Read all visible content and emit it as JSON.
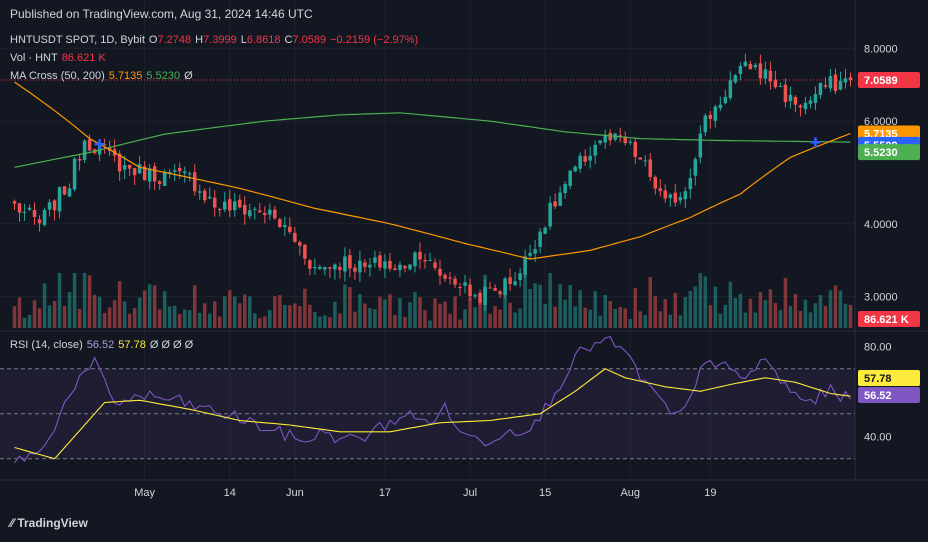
{
  "header": {
    "published": "Published on TradingView.com, Aug 31, 2024 14:46 UTC"
  },
  "legend": {
    "symbol": "HNTUSDT SPOT, 1D, Bybit",
    "o_label": "O",
    "o": "7.2748",
    "h_label": "H",
    "h": "7.3999",
    "l_label": "L",
    "l": "6.8618",
    "c_label": "C",
    "c": "7.0589",
    "chg": "−0.2159 (−2.97%)",
    "vol_label": "Vol · HNT",
    "vol": "86.621 K",
    "ma_label": "MA Cross (50, 200)",
    "ma50": "5.7135",
    "ma200": "5.5230",
    "ma_glyph": "Ø",
    "rsi_label": "RSI (14, close)",
    "rsi": "56.52",
    "rsi_ma": "57.78",
    "rsi_glyphs": "Ø Ø Ø Ø"
  },
  "footer": {
    "logo": "TradingView"
  },
  "colors": {
    "up": "#26a69a",
    "down": "#ef5350",
    "ma50": "#ff9800",
    "ma200": "#4caf50",
    "rsi": "#7e57c2",
    "rsi_ma": "#ffeb3b",
    "cross": "#2962ff"
  },
  "chart_data": [
    {
      "type": "candlestick",
      "title": "",
      "x_ticks": [
        "May",
        "14",
        "Jun",
        "17",
        "Jul",
        "15",
        "Aug",
        "19"
      ],
      "y_ticks": [
        "8.0000",
        "6.0000",
        "4.0000",
        "3.0000"
      ],
      "y_tick_values": [
        8.0,
        6.0,
        4.0,
        3.0
      ],
      "scale": "log",
      "ylim": [
        2.65,
        8.6
      ],
      "close_anchors": [
        [
          0,
          4.3
        ],
        [
          5,
          4.0
        ],
        [
          11,
          4.7
        ],
        [
          14,
          5.6
        ],
        [
          18,
          5.3
        ],
        [
          22,
          5.0
        ],
        [
          28,
          4.85
        ],
        [
          35,
          4.8
        ],
        [
          40,
          4.3
        ],
        [
          50,
          4.2
        ],
        [
          55,
          3.85
        ],
        [
          60,
          3.35
        ],
        [
          66,
          3.45
        ],
        [
          70,
          3.35
        ],
        [
          74,
          3.45
        ],
        [
          76,
          3.3
        ],
        [
          81,
          3.6
        ],
        [
          84,
          3.3
        ],
        [
          88,
          3.2
        ],
        [
          92,
          3.0
        ],
        [
          97,
          3.1
        ],
        [
          101,
          3.3
        ],
        [
          105,
          3.9
        ],
        [
          111,
          4.8
        ],
        [
          117,
          5.6
        ],
        [
          122,
          5.5
        ],
        [
          126,
          5.0
        ],
        [
          130,
          4.3
        ],
        [
          134,
          4.6
        ],
        [
          138,
          6.0
        ],
        [
          141,
          6.5
        ],
        [
          143,
          7.0
        ],
        [
          147,
          7.5
        ],
        [
          151,
          7.1
        ],
        [
          155,
          6.5
        ],
        [
          158,
          6.4
        ],
        [
          162,
          6.9
        ],
        [
          165,
          7.0
        ],
        [
          167,
          7.06
        ]
      ],
      "last_close": 7.0589,
      "ma50_anchors": [
        [
          0,
          7.0
        ],
        [
          15,
          5.6
        ],
        [
          25,
          5.0
        ],
        [
          45,
          4.6
        ],
        [
          60,
          4.25
        ],
        [
          75,
          4.0
        ],
        [
          90,
          3.7
        ],
        [
          103,
          3.48
        ],
        [
          115,
          3.6
        ],
        [
          125,
          3.8
        ],
        [
          135,
          4.1
        ],
        [
          145,
          4.5
        ],
        [
          155,
          5.2
        ],
        [
          167,
          5.7135
        ]
      ],
      "ma200_anchors": [
        [
          0,
          5.0
        ],
        [
          15,
          5.3
        ],
        [
          30,
          5.7
        ],
        [
          50,
          6.0
        ],
        [
          65,
          6.15
        ],
        [
          77,
          6.2
        ],
        [
          95,
          6.0
        ],
        [
          110,
          5.75
        ],
        [
          125,
          5.6
        ],
        [
          140,
          5.56
        ],
        [
          167,
          5.523
        ]
      ],
      "cross_points": [
        [
          17,
          5.48
        ],
        [
          160,
          5.52
        ]
      ],
      "price_labels": [
        {
          "value": "7.0589",
          "price": 7.0589,
          "color": "#f23645"
        },
        {
          "value": "5.7135",
          "price": 5.7135,
          "color": "#ff9800"
        },
        {
          "value": "5.5509",
          "price": 5.5509,
          "color": "#2962ff"
        },
        {
          "value": "5.5230",
          "price": 5.523,
          "color": "#4caf50"
        }
      ]
    },
    {
      "type": "bar",
      "title": "",
      "series_name": "Vol · HNT",
      "last_value": "86.621 K",
      "label_color": "#f23645"
    },
    {
      "type": "line",
      "title": "",
      "y_ticks": [
        "80.00",
        "40.00"
      ],
      "y_tick_values": [
        80,
        40
      ],
      "band": [
        70,
        30
      ],
      "ylim": [
        25,
        85
      ],
      "rsi_anchors": [
        [
          0,
          30
        ],
        [
          5,
          32
        ],
        [
          12,
          63
        ],
        [
          16,
          72
        ],
        [
          20,
          55
        ],
        [
          26,
          58
        ],
        [
          32,
          56
        ],
        [
          38,
          52
        ],
        [
          45,
          48
        ],
        [
          52,
          42
        ],
        [
          58,
          38
        ],
        [
          62,
          42
        ],
        [
          66,
          38
        ],
        [
          70,
          40
        ],
        [
          74,
          45
        ],
        [
          78,
          50
        ],
        [
          82,
          46
        ],
        [
          86,
          52
        ],
        [
          90,
          40
        ],
        [
          94,
          38
        ],
        [
          98,
          42
        ],
        [
          104,
          45
        ],
        [
          108,
          60
        ],
        [
          112,
          75
        ],
        [
          115,
          80
        ],
        [
          118,
          82
        ],
        [
          121,
          80
        ],
        [
          124,
          70
        ],
        [
          128,
          58
        ],
        [
          132,
          48
        ],
        [
          135,
          55
        ],
        [
          138,
          75
        ],
        [
          141,
          72
        ],
        [
          145,
          65
        ],
        [
          150,
          74
        ],
        [
          154,
          62
        ],
        [
          158,
          55
        ],
        [
          163,
          60
        ],
        [
          167,
          56.52
        ]
      ],
      "rsi_ma_anchors": [
        [
          0,
          35
        ],
        [
          8,
          30
        ],
        [
          12,
          40
        ],
        [
          18,
          55
        ],
        [
          25,
          56
        ],
        [
          35,
          52
        ],
        [
          45,
          47
        ],
        [
          55,
          45
        ],
        [
          65,
          42
        ],
        [
          75,
          42
        ],
        [
          85,
          46
        ],
        [
          95,
          47
        ],
        [
          105,
          50
        ],
        [
          112,
          60
        ],
        [
          118,
          70
        ],
        [
          122,
          66
        ],
        [
          130,
          62
        ],
        [
          137,
          60
        ],
        [
          143,
          63
        ],
        [
          150,
          66
        ],
        [
          156,
          64
        ],
        [
          163,
          59
        ],
        [
          167,
          57.78
        ]
      ],
      "labels": [
        {
          "value": "57.78",
          "color": "#ffeb3b",
          "dark": true
        },
        {
          "value": "56.52",
          "color": "#7e57c2",
          "dark": false
        }
      ]
    }
  ]
}
